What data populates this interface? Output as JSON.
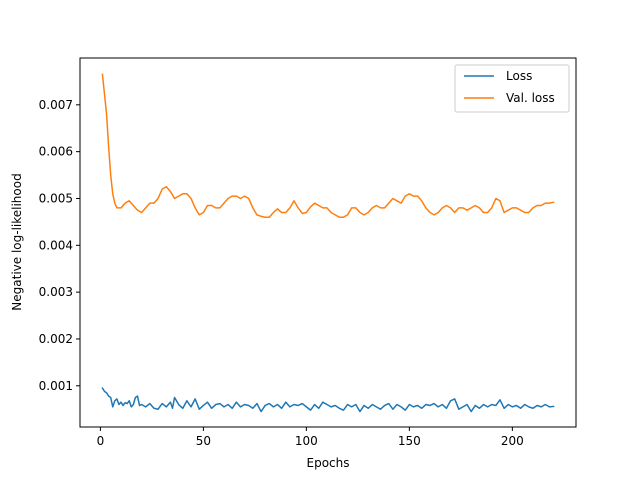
{
  "chart_data": {
    "type": "line",
    "title": "",
    "xlabel": "Epochs",
    "ylabel": "Negative log-likelihood",
    "xlim": [
      -9.9,
      230.9
    ],
    "ylim": [
      0.00012,
      0.008
    ],
    "xticks": [
      {
        "value": 0,
        "label": "0"
      },
      {
        "value": 50,
        "label": "50"
      },
      {
        "value": 100,
        "label": "100"
      },
      {
        "value": 150,
        "label": "150"
      },
      {
        "value": 200,
        "label": "200"
      }
    ],
    "yticks": [
      {
        "value": 0.001,
        "label": "0.001"
      },
      {
        "value": 0.002,
        "label": "0.002"
      },
      {
        "value": 0.003,
        "label": "0.003"
      },
      {
        "value": 0.004,
        "label": "0.004"
      },
      {
        "value": 0.005,
        "label": "0.005"
      },
      {
        "value": 0.006,
        "label": "0.006"
      },
      {
        "value": 0.007,
        "label": "0.007"
      }
    ],
    "grid": false,
    "legend_position": "top-right",
    "series": [
      {
        "name": "Loss",
        "color": "#1f77b4",
        "points": [
          [
            1,
            0.00095
          ],
          [
            2,
            0.00088
          ],
          [
            3,
            0.00085
          ],
          [
            4,
            0.00078
          ],
          [
            5,
            0.00075
          ],
          [
            6,
            0.00055
          ],
          [
            7,
            0.00068
          ],
          [
            8,
            0.00072
          ],
          [
            9,
            0.0006
          ],
          [
            10,
            0.00065
          ],
          [
            11,
            0.00058
          ],
          [
            12,
            0.00064
          ],
          [
            13,
            0.00062
          ],
          [
            14,
            0.00068
          ],
          [
            15,
            0.00055
          ],
          [
            16,
            0.0006
          ],
          [
            17,
            0.00075
          ],
          [
            18,
            0.00078
          ],
          [
            19,
            0.00058
          ],
          [
            20,
            0.0006
          ],
          [
            22,
            0.00055
          ],
          [
            24,
            0.00062
          ],
          [
            26,
            0.00052
          ],
          [
            28,
            0.0005
          ],
          [
            30,
            0.00062
          ],
          [
            32,
            0.00055
          ],
          [
            34,
            0.00065
          ],
          [
            35,
            0.00052
          ],
          [
            36,
            0.00075
          ],
          [
            38,
            0.0006
          ],
          [
            40,
            0.00052
          ],
          [
            42,
            0.00068
          ],
          [
            44,
            0.00055
          ],
          [
            46,
            0.00072
          ],
          [
            48,
            0.0005
          ],
          [
            50,
            0.00058
          ],
          [
            52,
            0.00065
          ],
          [
            54,
            0.00052
          ],
          [
            56,
            0.0006
          ],
          [
            58,
            0.00062
          ],
          [
            60,
            0.00055
          ],
          [
            62,
            0.0006
          ],
          [
            64,
            0.00052
          ],
          [
            66,
            0.00065
          ],
          [
            68,
            0.00055
          ],
          [
            70,
            0.0006
          ],
          [
            72,
            0.00058
          ],
          [
            74,
            0.00052
          ],
          [
            76,
            0.00062
          ],
          [
            78,
            0.00045
          ],
          [
            80,
            0.00058
          ],
          [
            82,
            0.00062
          ],
          [
            84,
            0.00055
          ],
          [
            86,
            0.0006
          ],
          [
            88,
            0.00052
          ],
          [
            90,
            0.00065
          ],
          [
            92,
            0.00055
          ],
          [
            94,
            0.0006
          ],
          [
            96,
            0.00058
          ],
          [
            98,
            0.00062
          ],
          [
            100,
            0.00055
          ],
          [
            102,
            0.00048
          ],
          [
            104,
            0.0006
          ],
          [
            106,
            0.00052
          ],
          [
            108,
            0.00065
          ],
          [
            110,
            0.0006
          ],
          [
            112,
            0.00055
          ],
          [
            114,
            0.00058
          ],
          [
            116,
            0.00052
          ],
          [
            118,
            0.00048
          ],
          [
            120,
            0.0006
          ],
          [
            122,
            0.00055
          ],
          [
            124,
            0.0006
          ],
          [
            126,
            0.00045
          ],
          [
            128,
            0.00058
          ],
          [
            130,
            0.00052
          ],
          [
            132,
            0.0006
          ],
          [
            134,
            0.00055
          ],
          [
            136,
            0.0005
          ],
          [
            138,
            0.00058
          ],
          [
            140,
            0.00062
          ],
          [
            142,
            0.0005
          ],
          [
            144,
            0.0006
          ],
          [
            146,
            0.00055
          ],
          [
            148,
            0.00048
          ],
          [
            150,
            0.0006
          ],
          [
            152,
            0.00055
          ],
          [
            154,
            0.00058
          ],
          [
            156,
            0.00052
          ],
          [
            158,
            0.0006
          ],
          [
            160,
            0.00058
          ],
          [
            162,
            0.00062
          ],
          [
            164,
            0.00055
          ],
          [
            166,
            0.0006
          ],
          [
            168,
            0.00052
          ],
          [
            170,
            0.00068
          ],
          [
            172,
            0.00072
          ],
          [
            174,
            0.0005
          ],
          [
            176,
            0.00055
          ],
          [
            178,
            0.0006
          ],
          [
            180,
            0.00045
          ],
          [
            182,
            0.00058
          ],
          [
            184,
            0.00052
          ],
          [
            186,
            0.0006
          ],
          [
            188,
            0.00055
          ],
          [
            190,
            0.0006
          ],
          [
            192,
            0.00058
          ],
          [
            194,
            0.0007
          ],
          [
            196,
            0.00052
          ],
          [
            198,
            0.0006
          ],
          [
            200,
            0.00055
          ],
          [
            202,
            0.00058
          ],
          [
            204,
            0.00052
          ],
          [
            206,
            0.0006
          ],
          [
            208,
            0.00055
          ],
          [
            210,
            0.00052
          ],
          [
            212,
            0.00058
          ],
          [
            214,
            0.00055
          ],
          [
            216,
            0.0006
          ],
          [
            218,
            0.00055
          ],
          [
            220,
            0.00056
          ]
        ]
      },
      {
        "name": "Val. loss",
        "color": "#ff7f0e",
        "points": [
          [
            1,
            0.00765
          ],
          [
            3,
            0.0068
          ],
          [
            4,
            0.0061
          ],
          [
            5,
            0.0055
          ],
          [
            6,
            0.0051
          ],
          [
            7,
            0.0049
          ],
          [
            8,
            0.0048
          ],
          [
            10,
            0.0048
          ],
          [
            12,
            0.0049
          ],
          [
            14,
            0.00495
          ],
          [
            16,
            0.00485
          ],
          [
            18,
            0.00475
          ],
          [
            20,
            0.0047
          ],
          [
            22,
            0.0048
          ],
          [
            24,
            0.0049
          ],
          [
            26,
            0.0049
          ],
          [
            28,
            0.005
          ],
          [
            30,
            0.0052
          ],
          [
            32,
            0.00525
          ],
          [
            34,
            0.00515
          ],
          [
            36,
            0.005
          ],
          [
            38,
            0.00505
          ],
          [
            40,
            0.0051
          ],
          [
            42,
            0.0051
          ],
          [
            44,
            0.005
          ],
          [
            46,
            0.0048
          ],
          [
            48,
            0.00465
          ],
          [
            50,
            0.0047
          ],
          [
            52,
            0.00485
          ],
          [
            54,
            0.00485
          ],
          [
            56,
            0.0048
          ],
          [
            58,
            0.0048
          ],
          [
            60,
            0.0049
          ],
          [
            62,
            0.005
          ],
          [
            64,
            0.00505
          ],
          [
            66,
            0.00505
          ],
          [
            68,
            0.005
          ],
          [
            70,
            0.00505
          ],
          [
            72,
            0.005
          ],
          [
            74,
            0.0048
          ],
          [
            76,
            0.00465
          ],
          [
            78,
            0.00462
          ],
          [
            80,
            0.0046
          ],
          [
            82,
            0.0046
          ],
          [
            84,
            0.0047
          ],
          [
            86,
            0.00478
          ],
          [
            88,
            0.0047
          ],
          [
            90,
            0.0047
          ],
          [
            92,
            0.0048
          ],
          [
            94,
            0.00495
          ],
          [
            96,
            0.0048
          ],
          [
            98,
            0.00468
          ],
          [
            100,
            0.0047
          ],
          [
            102,
            0.00482
          ],
          [
            104,
            0.0049
          ],
          [
            106,
            0.00485
          ],
          [
            108,
            0.0048
          ],
          [
            110,
            0.0048
          ],
          [
            112,
            0.0047
          ],
          [
            114,
            0.00465
          ],
          [
            116,
            0.0046
          ],
          [
            118,
            0.0046
          ],
          [
            120,
            0.00465
          ],
          [
            122,
            0.0048
          ],
          [
            124,
            0.0048
          ],
          [
            126,
            0.0047
          ],
          [
            128,
            0.00465
          ],
          [
            130,
            0.0047
          ],
          [
            132,
            0.0048
          ],
          [
            134,
            0.00485
          ],
          [
            136,
            0.0048
          ],
          [
            138,
            0.0048
          ],
          [
            140,
            0.0049
          ],
          [
            142,
            0.005
          ],
          [
            144,
            0.00495
          ],
          [
            146,
            0.0049
          ],
          [
            148,
            0.00505
          ],
          [
            150,
            0.0051
          ],
          [
            152,
            0.00505
          ],
          [
            154,
            0.00505
          ],
          [
            156,
            0.00495
          ],
          [
            158,
            0.0048
          ],
          [
            160,
            0.0047
          ],
          [
            162,
            0.00465
          ],
          [
            164,
            0.0047
          ],
          [
            166,
            0.0048
          ],
          [
            168,
            0.00485
          ],
          [
            170,
            0.0048
          ],
          [
            172,
            0.0047
          ],
          [
            174,
            0.0048
          ],
          [
            176,
            0.0048
          ],
          [
            178,
            0.00475
          ],
          [
            180,
            0.0048
          ],
          [
            182,
            0.00485
          ],
          [
            184,
            0.0048
          ],
          [
            186,
            0.0047
          ],
          [
            188,
            0.0047
          ],
          [
            190,
            0.0048
          ],
          [
            192,
            0.005
          ],
          [
            194,
            0.00495
          ],
          [
            196,
            0.0047
          ],
          [
            198,
            0.00475
          ],
          [
            200,
            0.0048
          ],
          [
            202,
            0.0048
          ],
          [
            204,
            0.00475
          ],
          [
            206,
            0.0047
          ],
          [
            208,
            0.0047
          ],
          [
            210,
            0.0048
          ],
          [
            212,
            0.00485
          ],
          [
            214,
            0.00485
          ],
          [
            216,
            0.0049
          ],
          [
            218,
            0.0049
          ],
          [
            220,
            0.00492
          ]
        ]
      }
    ]
  }
}
